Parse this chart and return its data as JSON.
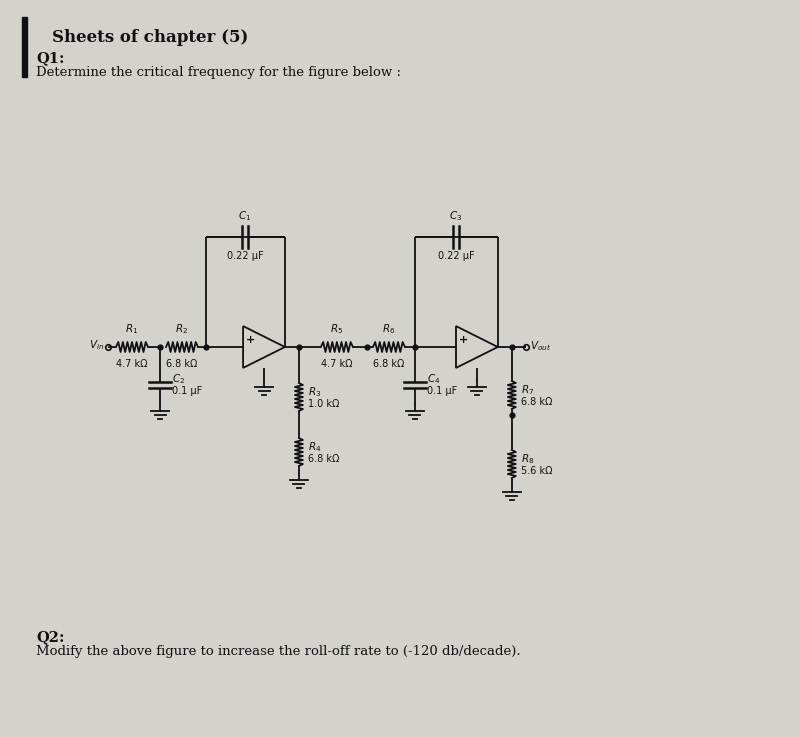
{
  "title": "Sheets of chapter (5)",
  "q1_text": "Q1:",
  "q1_desc": "Determine the critical frequency for the figure below :",
  "q2_text": "Q2:",
  "q2_desc": "Modify the above figure to increase the roll-off rate to (-120 db/decade).",
  "bg_color": "#c8c8c8",
  "paper_color": "#d4d2cd",
  "line_color": "#111111",
  "lw": 1.3
}
